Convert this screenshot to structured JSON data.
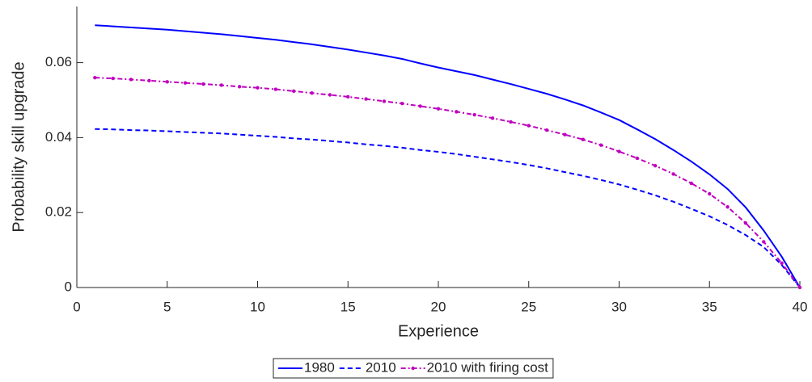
{
  "chart_data": {
    "type": "line",
    "xlabel": "Experience",
    "ylabel": "Probability skill upgrade",
    "x": [
      1,
      2,
      3,
      4,
      5,
      6,
      7,
      8,
      9,
      10,
      11,
      12,
      13,
      14,
      15,
      16,
      17,
      18,
      19,
      20,
      21,
      22,
      23,
      24,
      25,
      26,
      27,
      28,
      29,
      30,
      31,
      32,
      33,
      34,
      35,
      36,
      37,
      38,
      39,
      40
    ],
    "series": [
      {
        "name": "1980",
        "color": "#0000ff",
        "style": "solid",
        "marker": "none",
        "values": [
          0.07,
          0.0697,
          0.0694,
          0.0691,
          0.0688,
          0.0684,
          0.068,
          0.0676,
          0.0671,
          0.0666,
          0.0661,
          0.0655,
          0.0649,
          0.0642,
          0.0635,
          0.0627,
          0.0619,
          0.061,
          0.0598,
          0.0587,
          0.0577,
          0.0567,
          0.0555,
          0.0543,
          0.053,
          0.0517,
          0.0502,
          0.0486,
          0.0467,
          0.0447,
          0.0422,
          0.0396,
          0.0367,
          0.0336,
          0.0302,
          0.0263,
          0.0214,
          0.0152,
          0.0082,
          0
        ]
      },
      {
        "name": "2010",
        "color": "#0000ff",
        "style": "dashed",
        "marker": "none",
        "values": [
          0.0423,
          0.0422,
          0.042,
          0.0419,
          0.0417,
          0.0415,
          0.0413,
          0.0411,
          0.0408,
          0.0405,
          0.0402,
          0.0398,
          0.0395,
          0.0391,
          0.0387,
          0.0382,
          0.0378,
          0.0373,
          0.0367,
          0.0362,
          0.0356,
          0.0349,
          0.0342,
          0.0335,
          0.0327,
          0.0318,
          0.0308,
          0.0298,
          0.0287,
          0.0275,
          0.0261,
          0.0246,
          0.0229,
          0.021,
          0.019,
          0.0167,
          0.014,
          0.0108,
          0.006,
          0
        ]
      },
      {
        "name": "2010 with firing cost",
        "color": "#bf00bf",
        "style": "dash-dot",
        "marker": "dot",
        "values": [
          0.056,
          0.0558,
          0.0555,
          0.0552,
          0.0549,
          0.0546,
          0.0543,
          0.054,
          0.0536,
          0.0533,
          0.0529,
          0.0524,
          0.0519,
          0.0514,
          0.0509,
          0.0503,
          0.0497,
          0.0491,
          0.0484,
          0.0477,
          0.0469,
          0.0461,
          0.0452,
          0.0442,
          0.0432,
          0.042,
          0.0408,
          0.0395,
          0.038,
          0.0363,
          0.0345,
          0.0325,
          0.0303,
          0.0278,
          0.025,
          0.0215,
          0.0172,
          0.0122,
          0.0065,
          0
        ]
      }
    ],
    "xlim": [
      0,
      40
    ],
    "ylim": [
      0,
      0.075
    ],
    "xticks": [
      0,
      5,
      10,
      15,
      20,
      25,
      30,
      35,
      40
    ],
    "yticks": [
      0,
      0.02,
      0.04,
      0.06
    ],
    "grid": false,
    "legend": "bottom"
  }
}
